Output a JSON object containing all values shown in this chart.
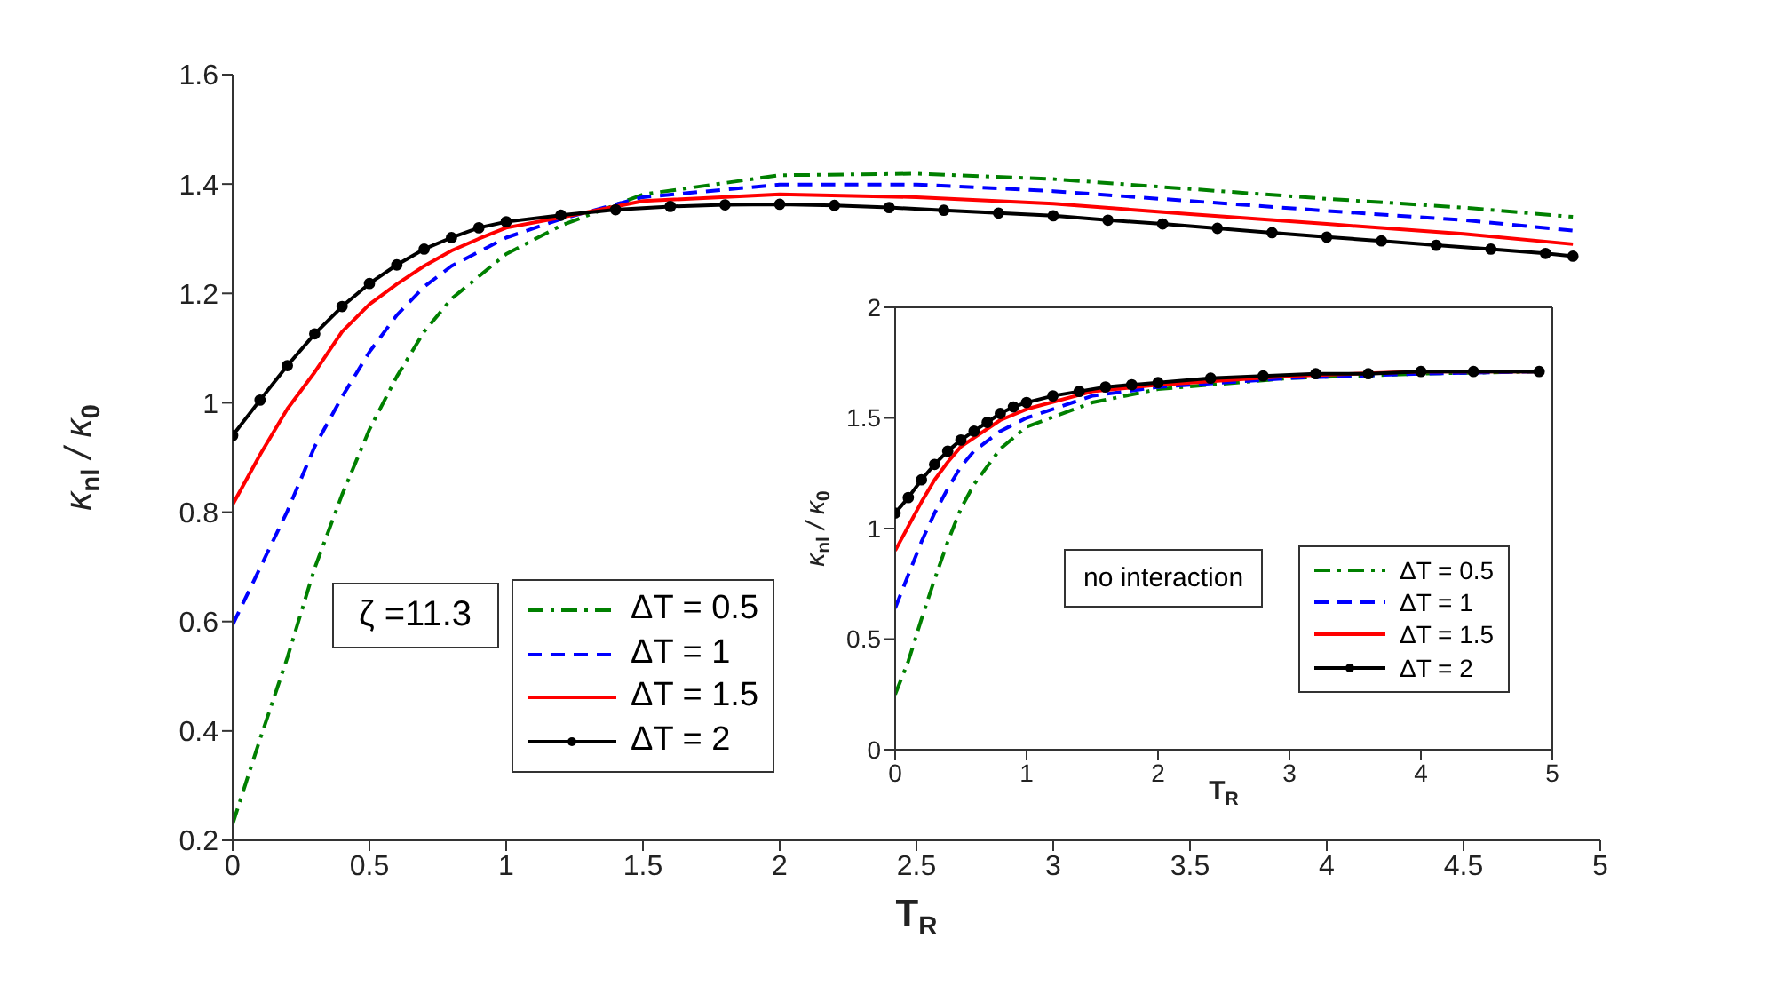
{
  "chart_data": [
    {
      "type": "line",
      "xlabel": "T$_{R}$",
      "ylabel": "κ$_{nl}$ / κ$_{0}$",
      "xlim": [
        0,
        5
      ],
      "xticks": [
        0,
        0.5,
        1,
        1.5,
        2,
        2.5,
        3,
        3.5,
        4,
        4.5,
        5
      ],
      "ylim": [
        0.2,
        1.6
      ],
      "yticks": [
        0.2,
        0.4,
        0.6,
        0.8,
        1,
        1.2,
        1.4,
        1.6
      ],
      "grid": false,
      "legend": "bottom left",
      "annotations": [
        "ζ =11.3"
      ],
      "series": [
        {
          "name": "ΔT = 0.5",
          "color": "#008000",
          "line_style": "dashdot",
          "marker": "none",
          "x": [
            0,
            0.1,
            0.2,
            0.3,
            0.4,
            0.5,
            0.6,
            0.7,
            0.8,
            1,
            1.2,
            1.5,
            2,
            2.5,
            3,
            3.5,
            4,
            4.5,
            4.9
          ],
          "values": [
            0.23,
            0.385,
            0.534,
            0.698,
            0.832,
            0.951,
            1.048,
            1.13,
            1.19,
            1.272,
            1.324,
            1.381,
            1.416,
            1.419,
            1.409,
            1.391,
            1.373,
            1.357,
            1.34
          ]
        },
        {
          "name": "ΔT = 1",
          "color": "#0000ff",
          "line_style": "dashed",
          "marker": "none",
          "x": [
            0,
            0.1,
            0.2,
            0.3,
            0.4,
            0.5,
            0.6,
            0.7,
            0.8,
            1,
            1.2,
            1.5,
            2,
            2.5,
            3,
            3.5,
            4,
            4.5,
            4.9
          ],
          "values": [
            0.594,
            0.698,
            0.802,
            0.92,
            1.011,
            1.093,
            1.16,
            1.212,
            1.25,
            1.302,
            1.336,
            1.376,
            1.399,
            1.399,
            1.387,
            1.369,
            1.351,
            1.334,
            1.315
          ]
        },
        {
          "name": "ΔT = 1.5",
          "color": "#ff0000",
          "line_style": "solid",
          "marker": "none",
          "x": [
            0,
            0.1,
            0.2,
            0.3,
            0.4,
            0.5,
            0.6,
            0.7,
            0.8,
            0.9,
            1,
            1.2,
            1.5,
            2,
            2.5,
            3,
            3.5,
            4,
            4.5,
            4.9
          ],
          "values": [
            0.814,
            0.905,
            0.989,
            1.056,
            1.13,
            1.18,
            1.217,
            1.25,
            1.278,
            1.3,
            1.32,
            1.339,
            1.369,
            1.381,
            1.376,
            1.364,
            1.345,
            1.327,
            1.309,
            1.29
          ]
        },
        {
          "name": "ΔT = 2",
          "color": "#000000",
          "line_style": "solid",
          "marker": "circle",
          "x": [
            0,
            0.1,
            0.2,
            0.3,
            0.4,
            0.5,
            0.6,
            0.7,
            0.8,
            0.9,
            1,
            1.2,
            1.4,
            1.6,
            1.8,
            2,
            2.2,
            2.4,
            2.6,
            2.8,
            3,
            3.2,
            3.4,
            3.6,
            3.8,
            4,
            4.2,
            4.4,
            4.6,
            4.8,
            4.9
          ],
          "values": [
            0.94,
            1.005,
            1.068,
            1.126,
            1.176,
            1.218,
            1.252,
            1.281,
            1.302,
            1.32,
            1.331,
            1.343,
            1.353,
            1.359,
            1.362,
            1.363,
            1.361,
            1.357,
            1.352,
            1.347,
            1.342,
            1.334,
            1.327,
            1.319,
            1.311,
            1.303,
            1.296,
            1.288,
            1.281,
            1.273,
            1.268
          ]
        }
      ]
    },
    {
      "type": "line",
      "xlabel": "T$_{R}$",
      "ylabel": "κ$_{nl}$ / κ$_{0}$",
      "xlim": [
        0,
        5
      ],
      "xticks": [
        0,
        1,
        2,
        3,
        4,
        5
      ],
      "ylim": [
        0,
        2
      ],
      "yticks": [
        0,
        0.5,
        1,
        1.5,
        2
      ],
      "grid": false,
      "legend": "right",
      "annotations": [
        "no interaction"
      ],
      "series": [
        {
          "name": "ΔT = 0.5",
          "color": "#008000",
          "line_style": "dashdot",
          "marker": "none",
          "x": [
            0,
            0.1,
            0.2,
            0.3,
            0.4,
            0.5,
            0.6,
            0.8,
            1,
            1.5,
            2,
            3,
            4,
            4.9
          ],
          "values": [
            0.25,
            0.4,
            0.59,
            0.77,
            0.94,
            1.09,
            1.2,
            1.36,
            1.46,
            1.57,
            1.63,
            1.68,
            1.7,
            1.71
          ]
        },
        {
          "name": "ΔT = 1",
          "color": "#0000ff",
          "line_style": "dashed",
          "marker": "none",
          "x": [
            0,
            0.1,
            0.2,
            0.3,
            0.4,
            0.5,
            0.6,
            0.8,
            1,
            1.5,
            2,
            3,
            4,
            4.9
          ],
          "values": [
            0.64,
            0.79,
            0.94,
            1.07,
            1.18,
            1.28,
            1.35,
            1.44,
            1.5,
            1.6,
            1.64,
            1.68,
            1.7,
            1.71
          ]
        },
        {
          "name": "ΔT = 1.5",
          "color": "#ff0000",
          "line_style": "solid",
          "marker": "none",
          "x": [
            0,
            0.1,
            0.2,
            0.3,
            0.4,
            0.5,
            0.6,
            0.8,
            1,
            1.5,
            2,
            3,
            4,
            4.9
          ],
          "values": [
            0.9,
            1.01,
            1.12,
            1.22,
            1.3,
            1.37,
            1.41,
            1.49,
            1.54,
            1.62,
            1.65,
            1.69,
            1.71,
            1.71
          ]
        },
        {
          "name": "ΔT = 2",
          "color": "#000000",
          "line_style": "solid",
          "marker": "circle",
          "x": [
            0,
            0.1,
            0.2,
            0.3,
            0.4,
            0.5,
            0.6,
            0.7,
            0.8,
            0.9,
            1,
            1.2,
            1.4,
            1.6,
            1.8,
            2,
            2.4,
            2.8,
            3.2,
            3.6,
            4,
            4.4,
            4.9
          ],
          "values": [
            1.07,
            1.14,
            1.22,
            1.29,
            1.35,
            1.4,
            1.44,
            1.48,
            1.52,
            1.55,
            1.57,
            1.6,
            1.62,
            1.64,
            1.65,
            1.66,
            1.68,
            1.69,
            1.7,
            1.7,
            1.71,
            1.71,
            1.71
          ]
        }
      ]
    }
  ]
}
